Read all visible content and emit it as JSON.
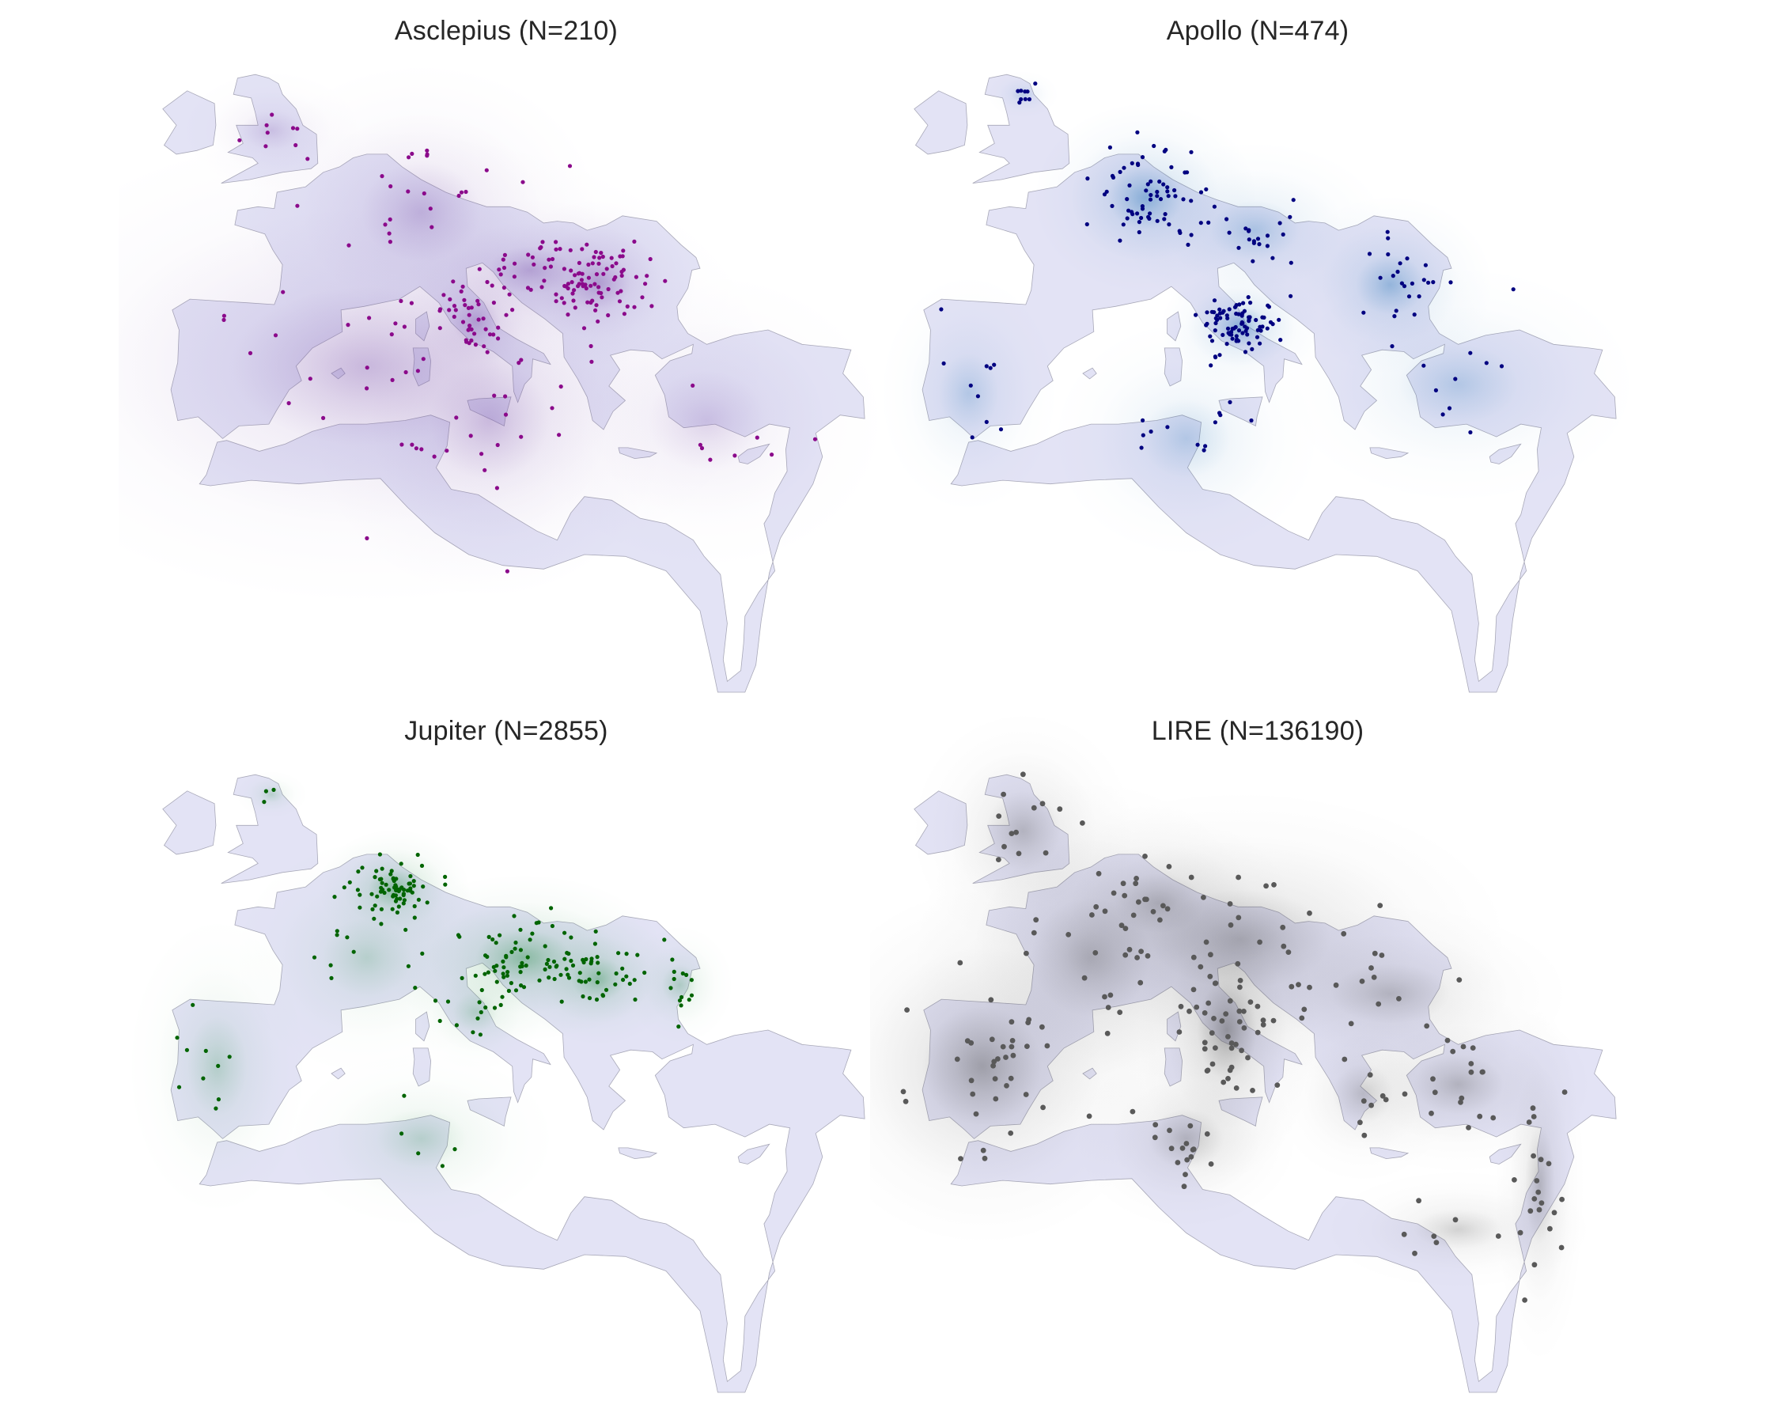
{
  "figure": {
    "panels": [
      {
        "id": "asclepius",
        "title": "Asclepius (N=210)",
        "point_color": "#8b0a8b",
        "density_color": "#7b52ab",
        "seed": 11,
        "clusters": [
          [
            22.0,
            44.6,
            2.2,
            1.4,
            0.3
          ],
          [
            13.0,
            42.5,
            1.6,
            1.2,
            0.14
          ],
          [
            17.0,
            45.3,
            2.8,
            1.2,
            0.14
          ],
          [
            9.0,
            48.5,
            4.0,
            2.5,
            0.1
          ],
          [
            5.0,
            40.0,
            9.0,
            4.0,
            0.14
          ],
          [
            30.0,
            37.0,
            4.0,
            2.5,
            0.04
          ],
          [
            -2.0,
            53.0,
            2.0,
            1.0,
            0.04
          ],
          [
            14.0,
            37.0,
            4.0,
            3.0,
            0.1
          ]
        ]
      },
      {
        "id": "apollo",
        "title": "Apollo (N=474)",
        "point_color": "#000080",
        "density_color": "#2171b5",
        "seed": 23,
        "clusters": [
          [
            14.0,
            42.2,
            1.8,
            1.0,
            0.38
          ],
          [
            7.0,
            49.3,
            2.5,
            1.6,
            0.26
          ],
          [
            25.0,
            44.5,
            2.3,
            1.5,
            0.14
          ],
          [
            -2.0,
            55.0,
            0.8,
            0.4,
            0.03
          ],
          [
            -6.0,
            38.5,
            2.0,
            2.0,
            0.04
          ],
          [
            15.0,
            47.5,
            3.0,
            1.5,
            0.07
          ],
          [
            10.0,
            36.0,
            3.0,
            2.0,
            0.04
          ],
          [
            30.0,
            39.0,
            4.0,
            2.0,
            0.04
          ]
        ]
      },
      {
        "id": "jupiter",
        "title": "Jupiter (N=2855)",
        "point_color": "#006400",
        "density_color": "#238b45",
        "seed": 37,
        "clusters": [
          [
            16.5,
            46.0,
            3.2,
            1.4,
            0.34
          ],
          [
            7.0,
            49.8,
            1.7,
            1.0,
            0.28
          ],
          [
            22.0,
            44.8,
            1.8,
            1.1,
            0.15
          ],
          [
            28.0,
            44.5,
            1.2,
            1.0,
            0.06
          ],
          [
            -2.0,
            55.0,
            0.8,
            0.4,
            0.03
          ],
          [
            -6.0,
            40.0,
            2.0,
            2.5,
            0.04
          ],
          [
            13.0,
            43.0,
            1.5,
            1.0,
            0.04
          ],
          [
            9.0,
            36.0,
            3.0,
            1.5,
            0.03
          ],
          [
            5.0,
            46.0,
            3.0,
            2.0,
            0.03
          ]
        ]
      },
      {
        "id": "lire",
        "title": "LIRE (N=136190)",
        "point_color": "#595959",
        "density_color": "#404040",
        "seed": 53,
        "clusters": [
          [
            13.0,
            42.0,
            2.0,
            2.5,
            0.18
          ],
          [
            -5.0,
            40.0,
            4.0,
            3.0,
            0.14
          ],
          [
            10.0,
            36.0,
            2.5,
            1.5,
            0.07
          ],
          [
            -2.0,
            53.0,
            2.5,
            2.0,
            0.06
          ],
          [
            3.0,
            46.0,
            4.0,
            3.0,
            0.08
          ],
          [
            14.0,
            47.0,
            6.0,
            2.5,
            0.1
          ],
          [
            25.0,
            44.0,
            4.0,
            1.5,
            0.06
          ],
          [
            23.0,
            38.5,
            2.0,
            1.5,
            0.04
          ],
          [
            30.0,
            39.0,
            3.0,
            1.5,
            0.07
          ],
          [
            36.0,
            33.5,
            1.0,
            3.0,
            0.07
          ],
          [
            8.0,
            49.0,
            3.0,
            1.5,
            0.05
          ],
          [
            30.0,
            31.0,
            3.0,
            1.0,
            0.03
          ]
        ]
      }
    ]
  }
}
